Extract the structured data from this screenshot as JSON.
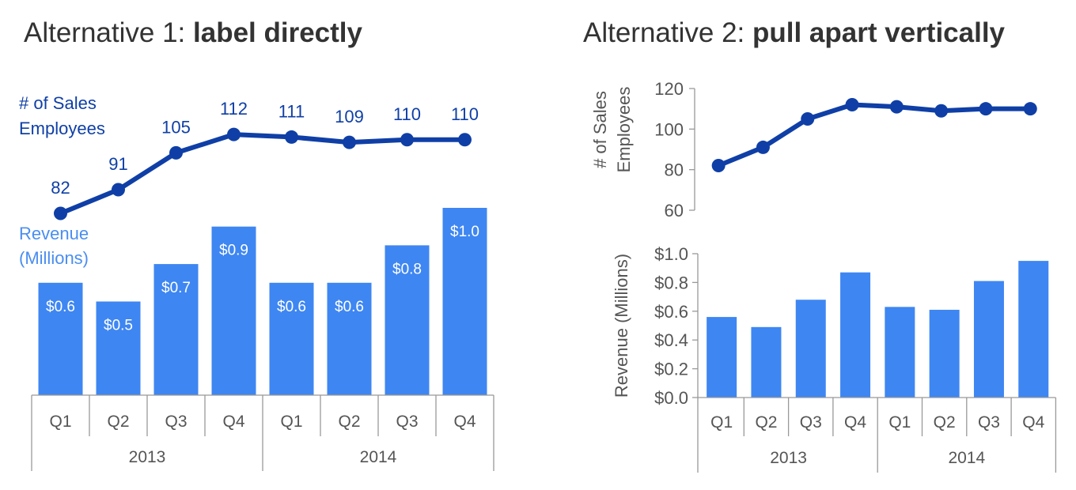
{
  "titles": {
    "left_prefix": "Alternative 1: ",
    "left_bold": "label directly",
    "right_prefix": "Alternative 2: ",
    "right_bold": "pull apart vertically"
  },
  "colors": {
    "line": "#0f3fa6",
    "bar": "#3e86f2",
    "bar_label": "#ffffff",
    "axis_text": "#555555",
    "axis_line": "#999999",
    "revenue_label": "#4a8ef0"
  },
  "chart_data": [
    {
      "type": "bar",
      "subtype": "bar+line combo",
      "title": "Alternative 1: label directly",
      "categories": [
        "Q1",
        "Q2",
        "Q3",
        "Q4",
        "Q1",
        "Q2",
        "Q3",
        "Q4"
      ],
      "groups": [
        "2013",
        "2014"
      ],
      "series": [
        {
          "name": "Revenue (Millions)",
          "type": "bar",
          "values": [
            0.6,
            0.5,
            0.7,
            0.9,
            0.6,
            0.6,
            0.8,
            1.0
          ],
          "data_labels": [
            "$0.6",
            "$0.5",
            "$0.7",
            "$0.9",
            "$0.6",
            "$0.6",
            "$0.8",
            "$1.0"
          ]
        },
        {
          "name": "# of Sales Employees",
          "type": "line",
          "values": [
            82,
            91,
            105,
            112,
            111,
            109,
            110,
            110
          ],
          "data_labels": [
            "82",
            "91",
            "105",
            "112",
            "111",
            "109",
            "110",
            "110"
          ]
        }
      ],
      "series_labels": {
        "line_1": "# of Sales",
        "line_2": "Employees",
        "bar_1": "Revenue",
        "bar_2": "(Millions)"
      },
      "grid": false
    },
    {
      "type": "line",
      "title": "Alternative 2: pull apart vertically",
      "categories": [
        "Q1",
        "Q2",
        "Q3",
        "Q4",
        "Q1",
        "Q2",
        "Q3",
        "Q4"
      ],
      "series": [
        {
          "name": "# of Sales Employees",
          "values": [
            82,
            91,
            105,
            112,
            111,
            109,
            110,
            110
          ]
        }
      ],
      "ylabel_lines": [
        "# of Sales",
        "Employees"
      ],
      "ylim": [
        60,
        120
      ],
      "yticks": [
        60,
        80,
        100,
        120
      ],
      "ytick_labels": [
        "60",
        "80",
        "100",
        "120"
      ],
      "grid": false
    },
    {
      "type": "bar",
      "categories": [
        "Q1",
        "Q2",
        "Q3",
        "Q4",
        "Q1",
        "Q2",
        "Q3",
        "Q4"
      ],
      "groups": [
        "2013",
        "2014"
      ],
      "series": [
        {
          "name": "Revenue (Millions)",
          "values": [
            0.56,
            0.49,
            0.68,
            0.87,
            0.63,
            0.61,
            0.81,
            0.95
          ]
        }
      ],
      "ylabel": "Revenue (Millions)",
      "ylim": [
        0,
        1.0
      ],
      "yticks": [
        0,
        0.2,
        0.4,
        0.6,
        0.8,
        1.0
      ],
      "ytick_labels": [
        "$0.0",
        "$0.2",
        "$0.4",
        "$0.6",
        "$0.8",
        "$1.0"
      ],
      "grid": false
    }
  ]
}
